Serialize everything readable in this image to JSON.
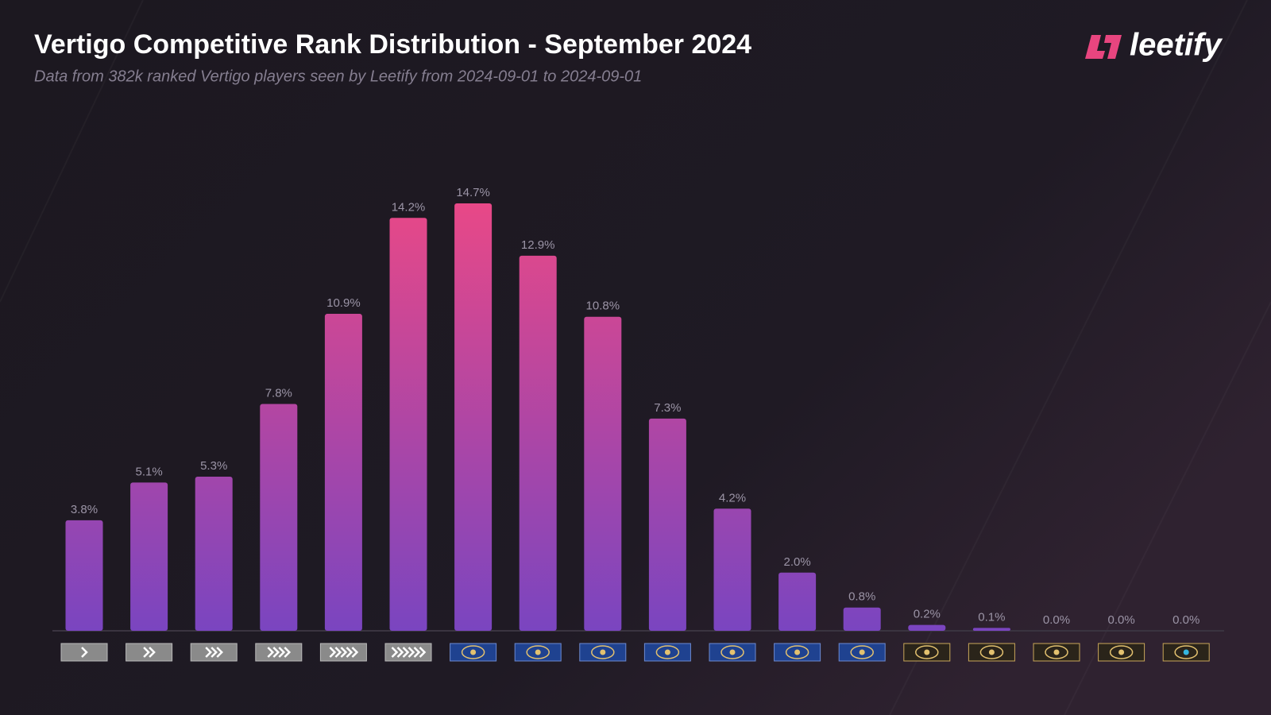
{
  "chart_data": {
    "type": "bar",
    "title": "Vertigo Competitive Rank Distribution - September 2024",
    "subtitle": "Data from 382k ranked Vertigo players seen by Leetify from 2024-09-01 to 2024-09-01",
    "categories": [
      null,
      null,
      null,
      null,
      null,
      null,
      null,
      null,
      null,
      null,
      null,
      null,
      null,
      null,
      null,
      null,
      null,
      null
    ],
    "values": [
      3.8,
      5.1,
      5.3,
      7.8,
      10.9,
      14.2,
      14.7,
      12.9,
      10.8,
      7.3,
      4.2,
      2.0,
      0.8,
      0.2,
      0.1,
      0.0,
      0.0,
      0.0
    ],
    "value_labels": [
      "3.8%",
      "5.1%",
      "5.3%",
      "7.8%",
      "10.9%",
      "14.2%",
      "14.7%",
      "12.9%",
      "10.8%",
      "7.3%",
      "4.2%",
      "2.0%",
      "0.8%",
      "0.2%",
      "0.1%",
      "0.0%",
      "0.0%",
      "0.0%"
    ],
    "colors": [
      "#7a45c0",
      "#ea4886"
    ],
    "ylim": [
      0,
      15
    ]
  },
  "brand": "leetify"
}
